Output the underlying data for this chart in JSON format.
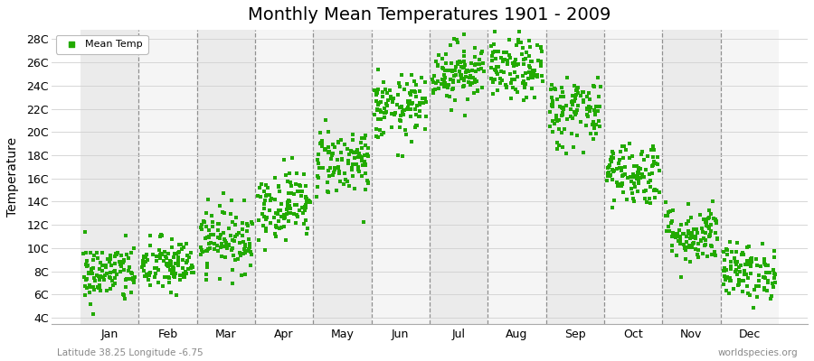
{
  "title": "Monthly Mean Temperatures 1901 - 2009",
  "ylabel": "Temperature",
  "xlabel_labels": [
    "Jan",
    "Feb",
    "Mar",
    "Apr",
    "May",
    "Jun",
    "Jul",
    "Aug",
    "Sep",
    "Oct",
    "Nov",
    "Dec"
  ],
  "ytick_labels": [
    "4C",
    "6C",
    "8C",
    "10C",
    "12C",
    "14C",
    "16C",
    "18C",
    "20C",
    "22C",
    "24C",
    "26C",
    "28C"
  ],
  "ytick_values": [
    4,
    6,
    8,
    10,
    12,
    14,
    16,
    18,
    20,
    22,
    24,
    26,
    28
  ],
  "ylim": [
    3.5,
    28.8
  ],
  "xlim": [
    -0.5,
    12.5
  ],
  "dot_color": "#22aa00",
  "band_colors": [
    "#ebebeb",
    "#f5f5f5"
  ],
  "footer_left": "Latitude 38.25 Longitude -6.75",
  "footer_right": "worldspecies.org",
  "legend_label": "Mean Temp",
  "mean_temps": [
    7.8,
    8.5,
    10.8,
    13.8,
    17.5,
    22.0,
    25.2,
    25.3,
    21.8,
    16.5,
    11.2,
    8.0
  ],
  "std_temps": [
    1.3,
    1.2,
    1.4,
    1.5,
    1.5,
    1.4,
    1.3,
    1.3,
    1.6,
    1.4,
    1.3,
    1.2
  ],
  "n_years": 109,
  "title_fontsize": 14,
  "axis_fontsize": 9,
  "ylabel_fontsize": 10
}
